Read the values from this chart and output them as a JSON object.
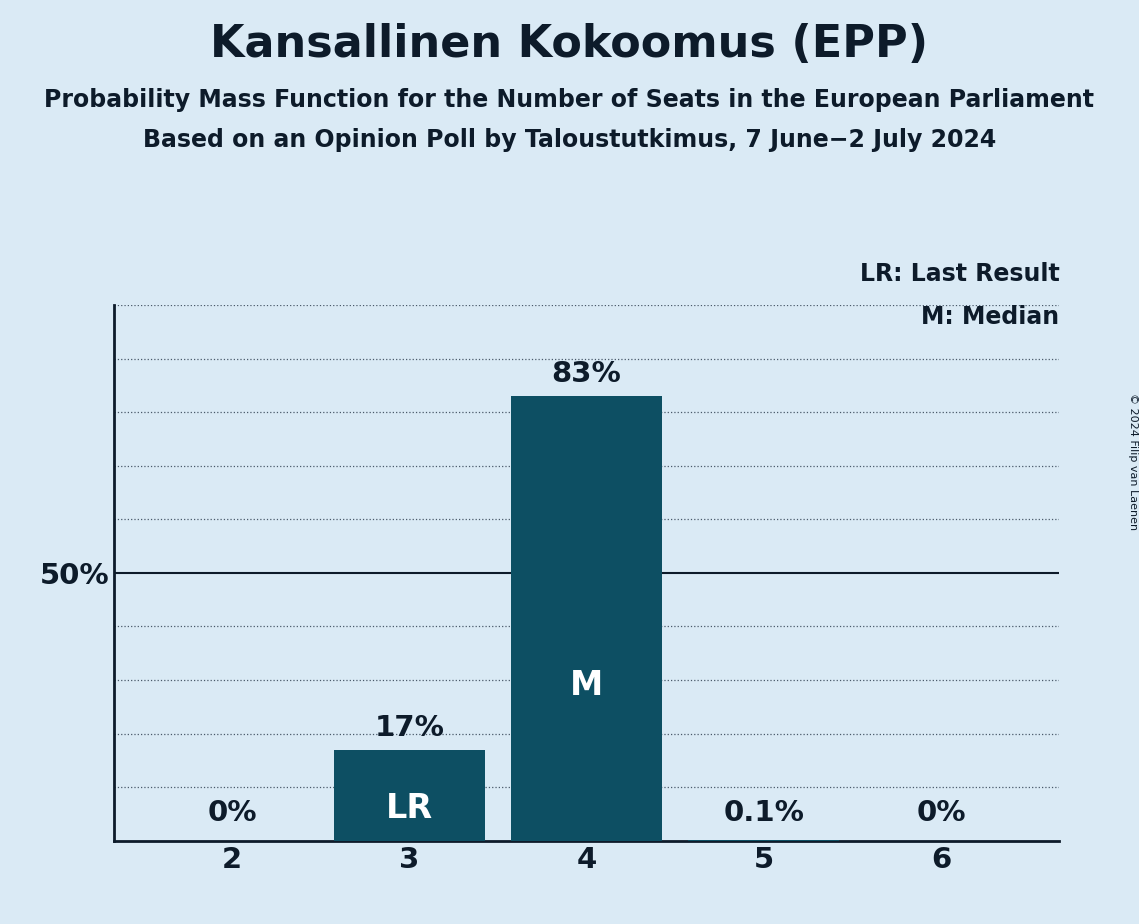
{
  "title": "Kansallinen Kokoomus (EPP)",
  "subtitle1": "Probability Mass Function for the Number of Seats in the European Parliament",
  "subtitle2": "Based on an Opinion Poll by Taloustutkimus, 7 June−2 July 2024",
  "copyright": "© 2024 Filip van Laenen",
  "categories": [
    2,
    3,
    4,
    5,
    6
  ],
  "values": [
    0.0,
    17.0,
    83.0,
    0.1,
    0.0
  ],
  "bar_color": "#0d4f63",
  "background_color": "#daeaf5",
  "text_color": "#0d1b2a",
  "bar_labels": [
    "0%",
    "17%",
    "83%",
    "0.1%",
    "0%"
  ],
  "bar_annotations": [
    null,
    "LR",
    "M",
    null,
    null
  ],
  "ylim": [
    0,
    100
  ],
  "yticks": [
    0,
    10,
    20,
    30,
    40,
    50,
    60,
    70,
    80,
    90,
    100
  ],
  "solid_ytick": 50,
  "legend_lr": "LR: Last Result",
  "legend_m": "M: Median",
  "title_fontsize": 32,
  "subtitle_fontsize": 17,
  "label_fontsize": 21,
  "tick_fontsize": 21,
  "annotation_fontsize": 24,
  "legend_fontsize": 17
}
